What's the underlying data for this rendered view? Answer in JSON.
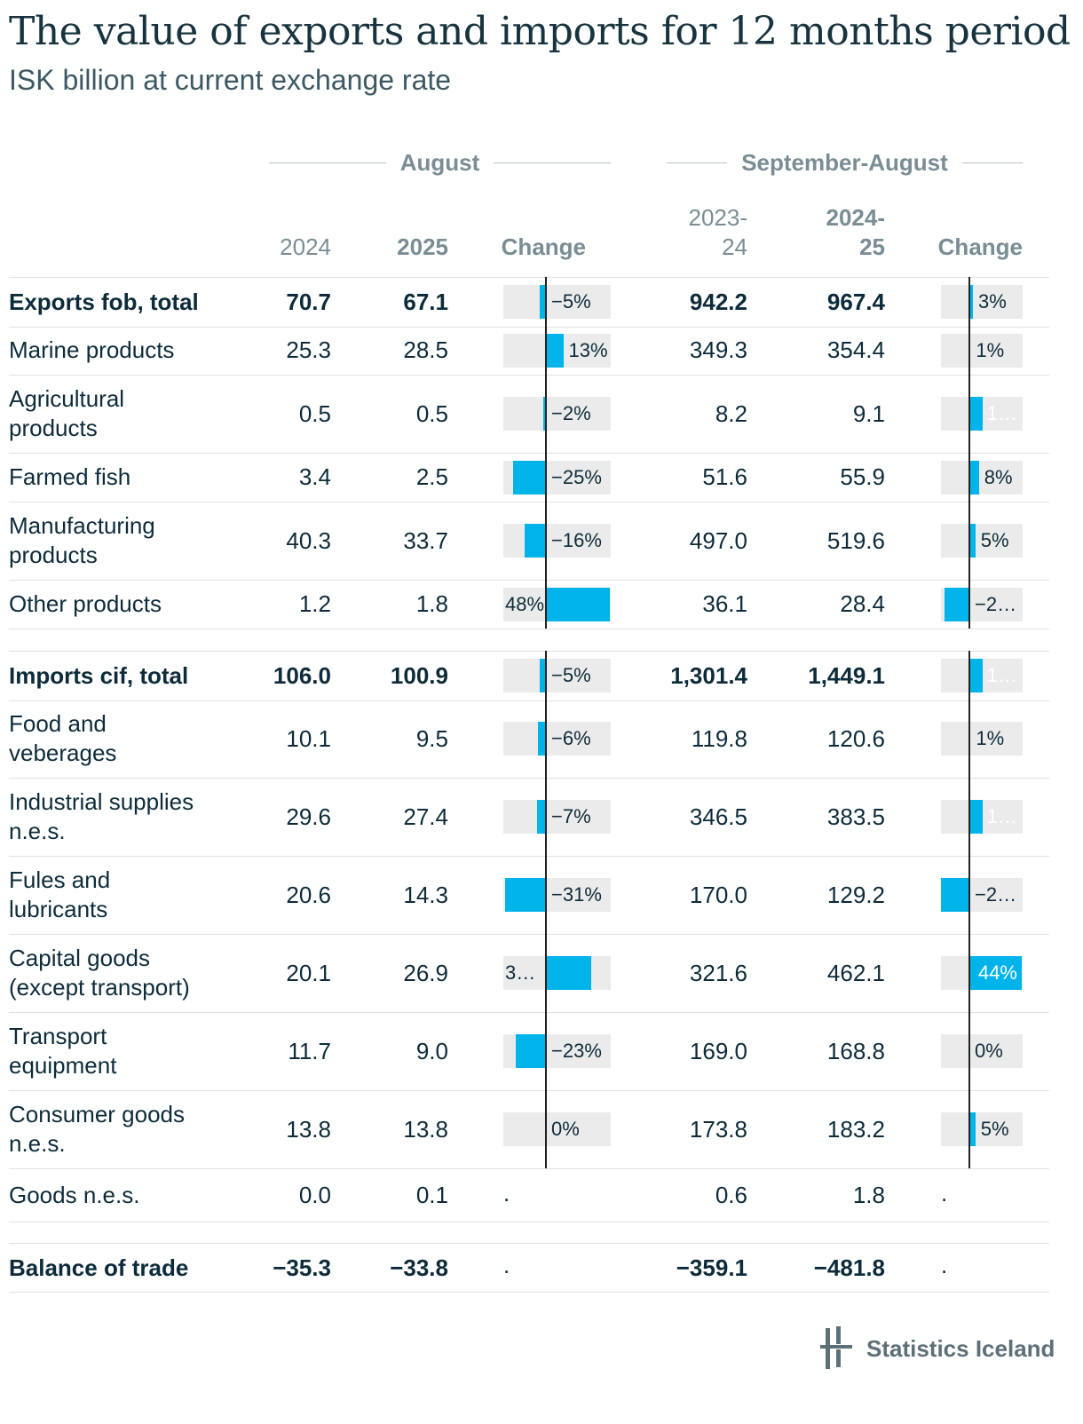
{
  "title": "The value of exports and imports for 12 months period",
  "subtitle": "ISK billion at current exchange rate",
  "groups": {
    "august": "August",
    "sep_aug": "September-August"
  },
  "columns": {
    "y2024": "2024",
    "y2025": "2025",
    "change": "Change",
    "p1_line1": "2023-",
    "p1_line2": "24",
    "p2_line1": "2024-",
    "p2_line2": "25",
    "change2": "Change"
  },
  "logo_text": "Statistics Iceland",
  "colors": {
    "bar": "#00b3e9",
    "cell_bg": "#ebebeb",
    "text": "#0d2b3a",
    "muted": "#7a8d94"
  },
  "chart_data": {
    "type": "table",
    "rows": [
      {
        "label": "Exports fob, total",
        "bold": true,
        "aug_2024": "70.7",
        "aug_2025": "67.1",
        "aug_change": -5,
        "aug_change_label": "−5%",
        "per_1": "942.2",
        "per_2": "967.4",
        "per_change": 3,
        "per_change_label": "3%"
      },
      {
        "label": "Marine products",
        "aug_2024": "25.3",
        "aug_2025": "28.5",
        "aug_change": 13,
        "aug_change_label": "13%",
        "per_1": "349.3",
        "per_2": "354.4",
        "per_change": 1,
        "per_change_label": "1%"
      },
      {
        "label": "Agricultural products",
        "aug_2024": "0.5",
        "aug_2025": "0.5",
        "aug_change": -2,
        "aug_change_label": "−2%",
        "per_1": "8.2",
        "per_2": "9.1",
        "per_change": 11,
        "per_change_label": "1…"
      },
      {
        "label": "Farmed fish",
        "aug_2024": "3.4",
        "aug_2025": "2.5",
        "aug_change": -25,
        "aug_change_label": "−25%",
        "per_1": "51.6",
        "per_2": "55.9",
        "per_change": 8,
        "per_change_label": "8%"
      },
      {
        "label": "Manufacturing products",
        "aug_2024": "40.3",
        "aug_2025": "33.7",
        "aug_change": -16,
        "aug_change_label": "−16%",
        "per_1": "497.0",
        "per_2": "519.6",
        "per_change": 5,
        "per_change_label": "5%"
      },
      {
        "label": "Other products",
        "aug_2024": "1.2",
        "aug_2025": "1.8",
        "aug_change": 48,
        "aug_change_label": "48%",
        "per_1": "36.1",
        "per_2": "28.4",
        "per_change": -21,
        "per_change_label": "−2…"
      },
      {
        "label": "Imports cif, total",
        "bold": true,
        "aug_2024": "106.0",
        "aug_2025": "100.9",
        "aug_change": -5,
        "aug_change_label": "−5%",
        "per_1": "1,301.4",
        "per_2": "1,449.1",
        "per_change": 11,
        "per_change_label": "1…"
      },
      {
        "label": "Food and veberages",
        "aug_2024": "10.1",
        "aug_2025": "9.5",
        "aug_change": -6,
        "aug_change_label": "−6%",
        "per_1": "119.8",
        "per_2": "120.6",
        "per_change": 1,
        "per_change_label": "1%"
      },
      {
        "label": "Industrial supplies n.e.s.",
        "aug_2024": "29.6",
        "aug_2025": "27.4",
        "aug_change": -7,
        "aug_change_label": "−7%",
        "per_1": "346.5",
        "per_2": "383.5",
        "per_change": 11,
        "per_change_label": "1…"
      },
      {
        "label": "Fules and lubricants",
        "aug_2024": "20.6",
        "aug_2025": "14.3",
        "aug_change": -31,
        "aug_change_label": "−31%",
        "per_1": "170.0",
        "per_2": "129.2",
        "per_change": -24,
        "per_change_label": "−2…"
      },
      {
        "label": "Capital goods (except transport)",
        "aug_2024": "20.1",
        "aug_2025": "26.9",
        "aug_change": 34,
        "aug_change_label": "3…",
        "per_1": "321.6",
        "per_2": "462.1",
        "per_change": 44,
        "per_change_label": "44%"
      },
      {
        "label": "Transport equipment",
        "aug_2024": "11.7",
        "aug_2025": "9.0",
        "aug_change": -23,
        "aug_change_label": "−23%",
        "per_1": "169.0",
        "per_2": "168.8",
        "per_change": 0,
        "per_change_label": "0%"
      },
      {
        "label": "Consumer goods n.e.s.",
        "aug_2024": "13.8",
        "aug_2025": "13.8",
        "aug_change": 0,
        "aug_change_label": "0%",
        "per_1": "173.8",
        "per_2": "183.2",
        "per_change": 5,
        "per_change_label": "5%"
      },
      {
        "label": "Goods n.e.s.",
        "aug_2024": "0.0",
        "aug_2025": "0.1",
        "aug_change": null,
        "aug_change_label": ".",
        "per_1": "0.6",
        "per_2": "1.8",
        "per_change": null,
        "per_change_label": "."
      },
      {
        "label": "Balance of trade",
        "bold": true,
        "aug_2024": "−35.3",
        "aug_2025": "−33.8",
        "aug_change": null,
        "aug_change_label": ".",
        "per_1": "−359.1",
        "per_2": "−481.8",
        "per_change": null,
        "per_change_label": "."
      }
    ]
  }
}
